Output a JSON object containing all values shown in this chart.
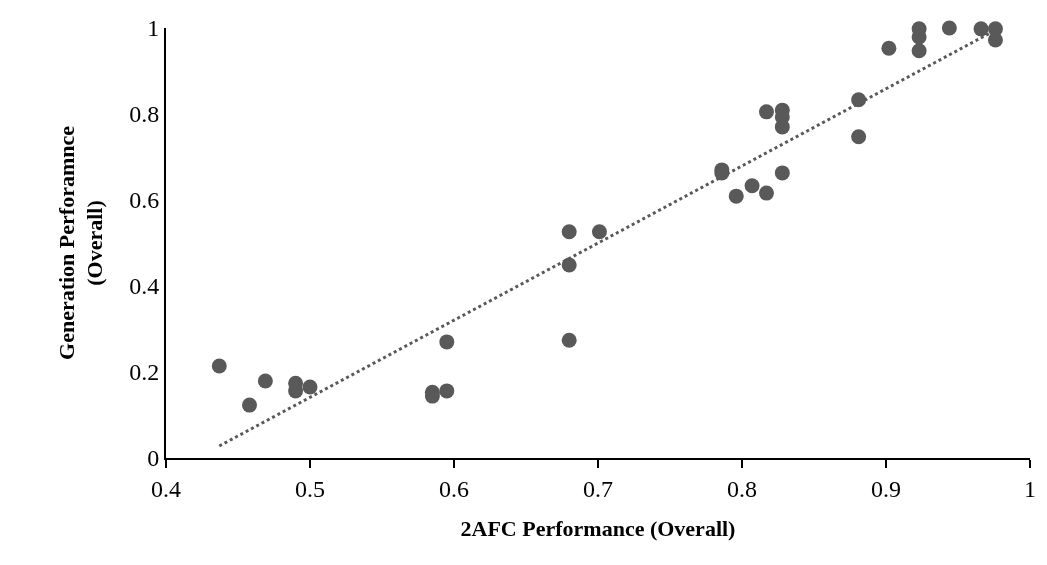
{
  "chart_data": {
    "type": "scatter",
    "xlabel": "2AFC Performance (Overall)",
    "ylabel": "Generation Perforamnce\n(Overall)",
    "xlim": [
      0.4,
      1
    ],
    "xticks": [
      0.4,
      0.5,
      0.6,
      0.7,
      0.8,
      0.9,
      1
    ],
    "ylim": [
      0,
      1
    ],
    "yticks": [
      0,
      0.2,
      0.4,
      0.6,
      0.8,
      1
    ],
    "marker": "circle",
    "series": [
      {
        "color": "#595959",
        "x": [
          0.437,
          0.458,
          0.469,
          0.49,
          0.49,
          0.5,
          0.585,
          0.585,
          0.595,
          0.595,
          0.68,
          0.68,
          0.68,
          0.701,
          0.786,
          0.786,
          0.796,
          0.807,
          0.817,
          0.828,
          0.817,
          0.828,
          0.828,
          0.828,
          0.881,
          0.881,
          0.902,
          0.923,
          0.923,
          0.923,
          0.944,
          0.966,
          0.976,
          0.976
        ],
        "values": [
          0.214,
          0.123,
          0.179,
          0.174,
          0.156,
          0.165,
          0.153,
          0.144,
          0.156,
          0.27,
          0.526,
          0.449,
          0.274,
          0.526,
          0.67,
          0.663,
          0.609,
          0.633,
          0.616,
          0.663,
          0.805,
          0.809,
          0.793,
          0.77,
          0.833,
          0.747,
          0.953,
          0.998,
          0.979,
          0.947,
          1.0,
          0.998,
          0.998,
          0.972
        ]
      },
      {
        "type": "line",
        "color": "#595959",
        "line_style": "dotted",
        "marker": "none",
        "x": [
          0.437,
          0.976
        ],
        "values": [
          0.028,
          0.995
        ]
      }
    ]
  }
}
